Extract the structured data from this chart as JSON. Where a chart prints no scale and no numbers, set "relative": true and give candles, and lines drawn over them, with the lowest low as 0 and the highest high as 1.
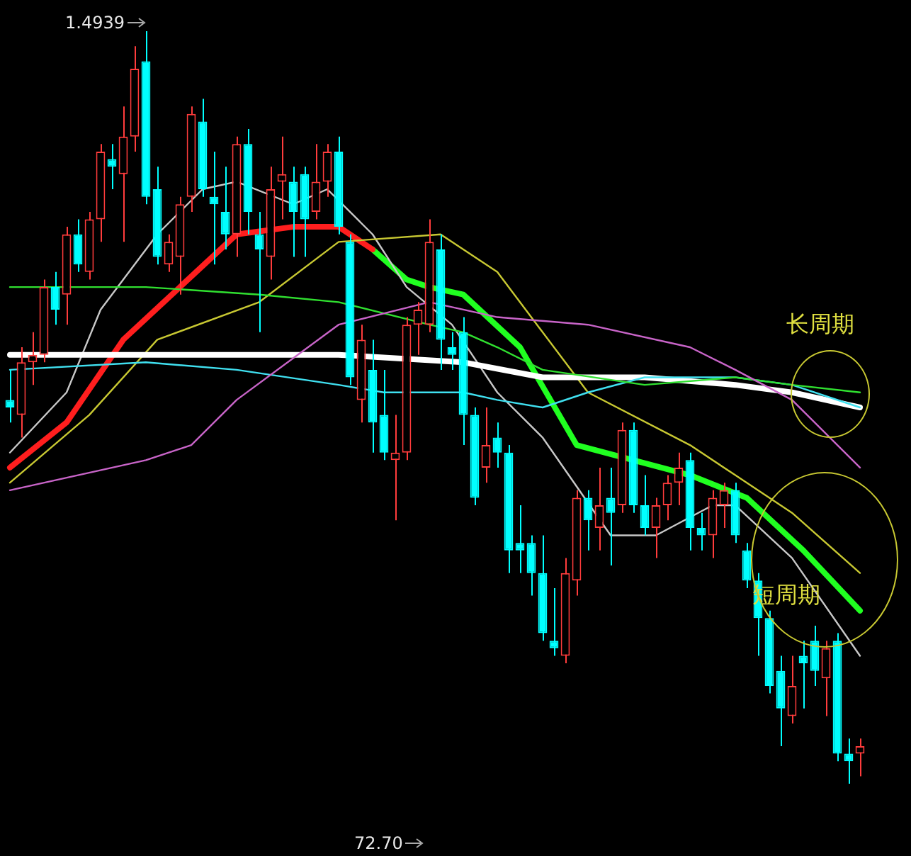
{
  "chart_data": {
    "type": "candlestick",
    "relative": true,
    "legend": false,
    "categories": [
      null,
      null,
      null,
      null,
      null,
      null,
      null,
      null,
      null,
      null,
      null,
      null,
      null,
      null,
      null,
      null,
      null,
      null,
      null,
      null,
      null,
      null,
      null,
      null,
      null,
      null,
      null,
      null,
      null,
      null,
      null,
      null,
      null,
      null,
      null,
      null,
      null,
      null,
      null,
      null,
      null,
      null,
      null,
      null,
      null,
      null,
      null,
      null,
      null,
      null,
      null,
      null,
      null,
      null,
      null,
      null,
      null,
      null,
      null,
      null,
      null,
      null,
      null,
      null,
      null,
      null,
      null,
      null,
      null,
      null,
      null,
      null,
      null,
      null,
      null,
      null
    ],
    "ohlc": [
      [
        0.51,
        0.55,
        0.48,
        0.5
      ],
      [
        0.49,
        0.58,
        0.46,
        0.56
      ],
      [
        0.56,
        0.6,
        0.53,
        0.57
      ],
      [
        0.57,
        0.67,
        0.56,
        0.66
      ],
      [
        0.66,
        0.68,
        0.61,
        0.63
      ],
      [
        0.65,
        0.74,
        0.61,
        0.73
      ],
      [
        0.73,
        0.75,
        0.68,
        0.69
      ],
      [
        0.68,
        0.76,
        0.67,
        0.75
      ],
      [
        0.75,
        0.85,
        0.72,
        0.84
      ],
      [
        0.83,
        0.85,
        0.79,
        0.82
      ],
      [
        0.81,
        0.9,
        0.72,
        0.86
      ],
      [
        0.86,
        0.98,
        0.84,
        0.95
      ],
      [
        0.96,
        1,
        0.77,
        0.78
      ],
      [
        0.79,
        0.82,
        0.69,
        0.7
      ],
      [
        0.69,
        0.73,
        0.68,
        0.72
      ],
      [
        0.7,
        0.78,
        0.65,
        0.77
      ],
      [
        0.78,
        0.9,
        0.76,
        0.89
      ],
      [
        0.88,
        0.91,
        0.78,
        0.79
      ],
      [
        0.78,
        0.84,
        0.69,
        0.77
      ],
      [
        0.76,
        0.82,
        0.71,
        0.73
      ],
      [
        0.73,
        0.86,
        0.7,
        0.85
      ],
      [
        0.85,
        0.87,
        0.73,
        0.76
      ],
      [
        0.73,
        0.76,
        0.6,
        0.71
      ],
      [
        0.7,
        0.82,
        0.67,
        0.79
      ],
      [
        0.8,
        0.86,
        0.75,
        0.81
      ],
      [
        0.8,
        0.82,
        0.7,
        0.76
      ],
      [
        0.81,
        0.82,
        0.7,
        0.75
      ],
      [
        0.76,
        0.85,
        0.75,
        0.8
      ],
      [
        0.8,
        0.85,
        0.78,
        0.84
      ],
      [
        0.84,
        0.86,
        0.73,
        0.74
      ],
      [
        0.72,
        0.73,
        0.53,
        0.54
      ],
      [
        0.51,
        0.61,
        0.48,
        0.59
      ],
      [
        0.55,
        0.59,
        0.44,
        0.48
      ],
      [
        0.49,
        0.55,
        0.43,
        0.44
      ],
      [
        0.43,
        0.49,
        0.35,
        0.44
      ],
      [
        0.44,
        0.62,
        0.43,
        0.61
      ],
      [
        0.61,
        0.64,
        0.57,
        0.63
      ],
      [
        0.61,
        0.75,
        0.6,
        0.72
      ],
      [
        0.71,
        0.73,
        0.55,
        0.59
      ],
      [
        0.58,
        0.6,
        0.55,
        0.57
      ],
      [
        0.6,
        0.62,
        0.45,
        0.49
      ],
      [
        0.49,
        0.5,
        0.37,
        0.38
      ],
      [
        0.42,
        0.5,
        0.4,
        0.45
      ],
      [
        0.46,
        0.48,
        0.42,
        0.44
      ],
      [
        0.44,
        0.45,
        0.28,
        0.31
      ],
      [
        0.32,
        0.37,
        0.28,
        0.31
      ],
      [
        0.32,
        0.33,
        0.25,
        0.28
      ],
      [
        0.28,
        0.33,
        0.19,
        0.2
      ],
      [
        0.19,
        0.26,
        0.17,
        0.18
      ],
      [
        0.17,
        0.3,
        0.16,
        0.28
      ],
      [
        0.27,
        0.39,
        0.25,
        0.38
      ],
      [
        0.38,
        0.39,
        0.31,
        0.35
      ],
      [
        0.34,
        0.42,
        0.31,
        0.37
      ],
      [
        0.38,
        0.42,
        0.29,
        0.36
      ],
      [
        0.37,
        0.48,
        0.36,
        0.47
      ],
      [
        0.47,
        0.48,
        0.36,
        0.37
      ],
      [
        0.37,
        0.41,
        0.33,
        0.34
      ],
      [
        0.34,
        0.38,
        0.3,
        0.37
      ],
      [
        0.37,
        0.41,
        0.35,
        0.4
      ],
      [
        0.4,
        0.44,
        0.37,
        0.42
      ],
      [
        0.43,
        0.44,
        0.31,
        0.34
      ],
      [
        0.34,
        0.36,
        0.31,
        0.33
      ],
      [
        0.33,
        0.39,
        0.3,
        0.38
      ],
      [
        0.37,
        0.4,
        0.34,
        0.39
      ],
      [
        0.39,
        0.4,
        0.32,
        0.33
      ],
      [
        0.31,
        0.32,
        0.26,
        0.27
      ],
      [
        0.27,
        0.28,
        0.17,
        0.22
      ],
      [
        0.22,
        0.23,
        0.12,
        0.13
      ],
      [
        0.15,
        0.17,
        0.05,
        0.1
      ],
      [
        0.09,
        0.17,
        0.08,
        0.13
      ],
      [
        0.17,
        0.19,
        0.1,
        0.16
      ],
      [
        0.19,
        0.21,
        0.13,
        0.15
      ],
      [
        0.14,
        0.19,
        0.09,
        0.18
      ],
      [
        0.19,
        0.2,
        0.03,
        0.04
      ],
      [
        0.04,
        0.06,
        0,
        0.03
      ],
      [
        0.04,
        0.06,
        0.01,
        0.05
      ]
    ],
    "colors": [
      "#00ffff",
      "#ff3c3c",
      "#ff3c3c",
      "#ff3c3c",
      "#00ffff",
      "#ff3c3c",
      "#00ffff",
      "#ff3c3c",
      "#ff3c3c",
      "#00ffff",
      "#ff3c3c",
      "#ff3c3c",
      "#00ffff",
      "#00ffff",
      "#ff3c3c",
      "#ff3c3c",
      "#ff3c3c",
      "#00ffff",
      "#00ffff",
      "#00ffff",
      "#ff3c3c",
      "#00ffff",
      "#00ffff",
      "#ff3c3c",
      "#ff3c3c",
      "#00ffff",
      "#00ffff",
      "#ff3c3c",
      "#ff3c3c",
      "#00ffff",
      "#00ffff",
      "#ff3c3c",
      "#00ffff",
      "#00ffff",
      "#ff3c3c",
      "#ff3c3c",
      "#ff3c3c",
      "#ff3c3c",
      "#00ffff",
      "#00ffff",
      "#00ffff",
      "#00ffff",
      "#ff3c3c",
      "#00ffff",
      "#00ffff",
      "#00ffff",
      "#00ffff",
      "#00ffff",
      "#00ffff",
      "#ff3c3c",
      "#ff3c3c",
      "#00ffff",
      "#ff3c3c",
      "#00ffff",
      "#ff3c3c",
      "#00ffff",
      "#00ffff",
      "#ff3c3c",
      "#ff3c3c",
      "#ff3c3c",
      "#00ffff",
      "#00ffff",
      "#ff3c3c",
      "#ff3c3c",
      "#00ffff",
      "#00ffff",
      "#00ffff",
      "#00ffff",
      "#00ffff",
      "#ff3c3c",
      "#00ffff",
      "#00ffff",
      "#ff3c3c",
      "#00ffff",
      "#00ffff",
      "#ff3c3c"
    ],
    "series": [
      {
        "type": "line",
        "color": "#c864c8",
        "values": [
          0.39,
          null,
          null,
          null,
          null,
          null,
          null,
          null,
          null,
          null,
          null,
          null,
          0.43,
          null,
          null,
          null,
          0.45,
          null,
          null,
          null,
          0.51,
          null,
          null,
          null,
          null,
          null,
          null,
          null,
          null,
          0.61,
          null,
          null,
          null,
          null,
          null,
          null,
          null,
          0.64,
          null,
          null,
          0.63,
          null,
          null,
          0.62,
          null,
          null,
          null,
          null,
          null,
          null,
          null,
          0.61,
          null,
          null,
          null,
          null,
          null,
          null,
          null,
          null,
          0.58,
          null,
          null,
          null,
          0.55,
          null,
          null,
          null,
          null,
          0.51,
          null,
          null,
          null,
          null,
          null,
          0.42
        ]
      },
      {
        "type": "line",
        "color": "#30e030",
        "values": [
          0.66,
          null,
          null,
          null,
          null,
          null,
          null,
          null,
          null,
          null,
          null,
          null,
          0.66,
          null,
          null,
          null,
          null,
          null,
          null,
          null,
          null,
          null,
          0.65,
          null,
          null,
          null,
          null,
          null,
          null,
          0.64,
          null,
          null,
          null,
          null,
          null,
          null,
          null,
          0.61,
          null,
          null,
          0.6,
          null,
          null,
          0.58,
          null,
          null,
          null,
          0.55,
          null,
          null,
          null,
          null,
          null,
          null,
          null,
          null,
          0.53,
          null,
          null,
          null,
          null,
          null,
          null,
          null,
          0.54,
          null,
          null,
          null,
          null,
          0.53,
          null,
          null,
          null,
          null,
          null,
          0.52
        ]
      },
      {
        "type": "line",
        "color": "#40e0f0",
        "values": [
          0.55,
          null,
          null,
          null,
          null,
          null,
          null,
          null,
          null,
          null,
          null,
          null,
          0.56,
          null,
          null,
          null,
          null,
          null,
          null,
          null,
          0.55,
          null,
          null,
          null,
          null,
          null,
          null,
          null,
          null,
          0.53,
          null,
          null,
          null,
          0.52,
          null,
          null,
          null,
          null,
          null,
          null,
          0.52,
          null,
          null,
          0.51,
          null,
          null,
          null,
          0.5,
          null,
          null,
          null,
          0.52,
          null,
          null,
          null,
          null,
          0.54,
          null,
          null,
          null,
          null,
          null,
          null,
          null,
          0.54,
          null,
          null,
          null,
          null,
          0.53,
          null,
          null,
          null,
          null,
          null,
          0.5
        ]
      },
      {
        "type": "line",
        "color": "#ffffff",
        "values": [
          0.57,
          null,
          null,
          null,
          null,
          null,
          null,
          null,
          null,
          null,
          null,
          null,
          0.57,
          null,
          null,
          null,
          null,
          null,
          null,
          null,
          null,
          null,
          null,
          null,
          null,
          null,
          null,
          null,
          null,
          0.57,
          null,
          null,
          null,
          null,
          null,
          null,
          null,
          null,
          null,
          null,
          0.56,
          null,
          null,
          null,
          null,
          null,
          null,
          0.54,
          null,
          null,
          null,
          null,
          null,
          null,
          null,
          null,
          0.54,
          null,
          null,
          null,
          null,
          null,
          null,
          null,
          0.53,
          null,
          null,
          null,
          null,
          0.52,
          null,
          null,
          null,
          null,
          null,
          0.5
        ]
      },
      {
        "type": "line",
        "color": "#c8c832",
        "values": [
          0.4,
          null,
          null,
          null,
          null,
          null,
          null,
          0.49,
          null,
          null,
          null,
          null,
          null,
          0.59,
          null,
          null,
          null,
          null,
          null,
          null,
          null,
          null,
          0.64,
          null,
          null,
          null,
          null,
          null,
          null,
          0.72,
          null,
          null,
          null,
          null,
          null,
          null,
          null,
          null,
          0.73,
          null,
          null,
          null,
          null,
          0.68,
          null,
          null,
          null,
          null,
          null,
          null,
          null,
          0.52,
          null,
          null,
          null,
          null,
          null,
          null,
          null,
          null,
          0.45,
          null,
          null,
          null,
          0.41,
          null,
          null,
          null,
          null,
          0.36,
          null,
          null,
          null,
          null,
          null,
          0.28
        ]
      },
      {
        "type": "line",
        "color": "#c8c8c8",
        "values": [
          0.44,
          null,
          null,
          null,
          null,
          0.52,
          null,
          null,
          0.63,
          null,
          null,
          null,
          null,
          0.73,
          null,
          null,
          null,
          0.79,
          null,
          null,
          0.8,
          null,
          null,
          null,
          null,
          0.77,
          null,
          null,
          0.79,
          null,
          null,
          null,
          0.73,
          null,
          null,
          0.66,
          null,
          null,
          null,
          0.61,
          null,
          null,
          null,
          0.52,
          null,
          null,
          null,
          0.46,
          null,
          null,
          null,
          null,
          null,
          0.33,
          null,
          null,
          null,
          0.33,
          null,
          null,
          null,
          null,
          0.37,
          null,
          0.37,
          null,
          null,
          null,
          null,
          0.3,
          null,
          null,
          null,
          null,
          null,
          0.17
        ]
      },
      {
        "type": "line",
        "color": "#ff1e1e",
        "values": [
          0.42,
          null,
          null,
          null,
          null,
          0.48,
          null,
          null,
          null,
          null,
          0.59,
          null,
          null,
          null,
          null,
          0.66,
          null,
          null,
          null,
          null,
          0.73,
          null,
          null,
          null,
          null,
          0.74,
          null,
          null,
          null,
          0.74,
          null,
          null,
          0.71,
          null,
          null,
          null,
          null,
          null,
          null,
          null,
          null,
          null,
          null,
          null,
          null,
          null,
          null,
          null,
          null,
          null,
          null,
          null,
          null,
          null,
          null,
          null,
          null,
          null,
          null,
          null,
          null,
          null,
          null,
          null,
          null,
          null,
          null,
          null,
          null,
          null,
          null,
          null,
          null,
          null,
          null,
          null
        ]
      },
      {
        "type": "line",
        "color": "#20ff20",
        "values": [
          null,
          null,
          null,
          null,
          null,
          null,
          null,
          null,
          null,
          null,
          null,
          null,
          null,
          null,
          null,
          null,
          null,
          null,
          null,
          null,
          null,
          null,
          null,
          null,
          null,
          null,
          null,
          null,
          null,
          null,
          null,
          null,
          0.71,
          null,
          null,
          0.67,
          null,
          0.66,
          null,
          null,
          0.65,
          null,
          null,
          null,
          null,
          0.58,
          null,
          null,
          null,
          null,
          0.45,
          null,
          null,
          null,
          null,
          0.43,
          null,
          null,
          null,
          null,
          0.41,
          null,
          null,
          null,
          null,
          0.38,
          null,
          null,
          null,
          null,
          0.31,
          null,
          null,
          null,
          null,
          0.23
        ]
      }
    ],
    "annotations": [
      "1.4939",
      "72.70",
      "长周期",
      "短周期"
    ]
  }
}
